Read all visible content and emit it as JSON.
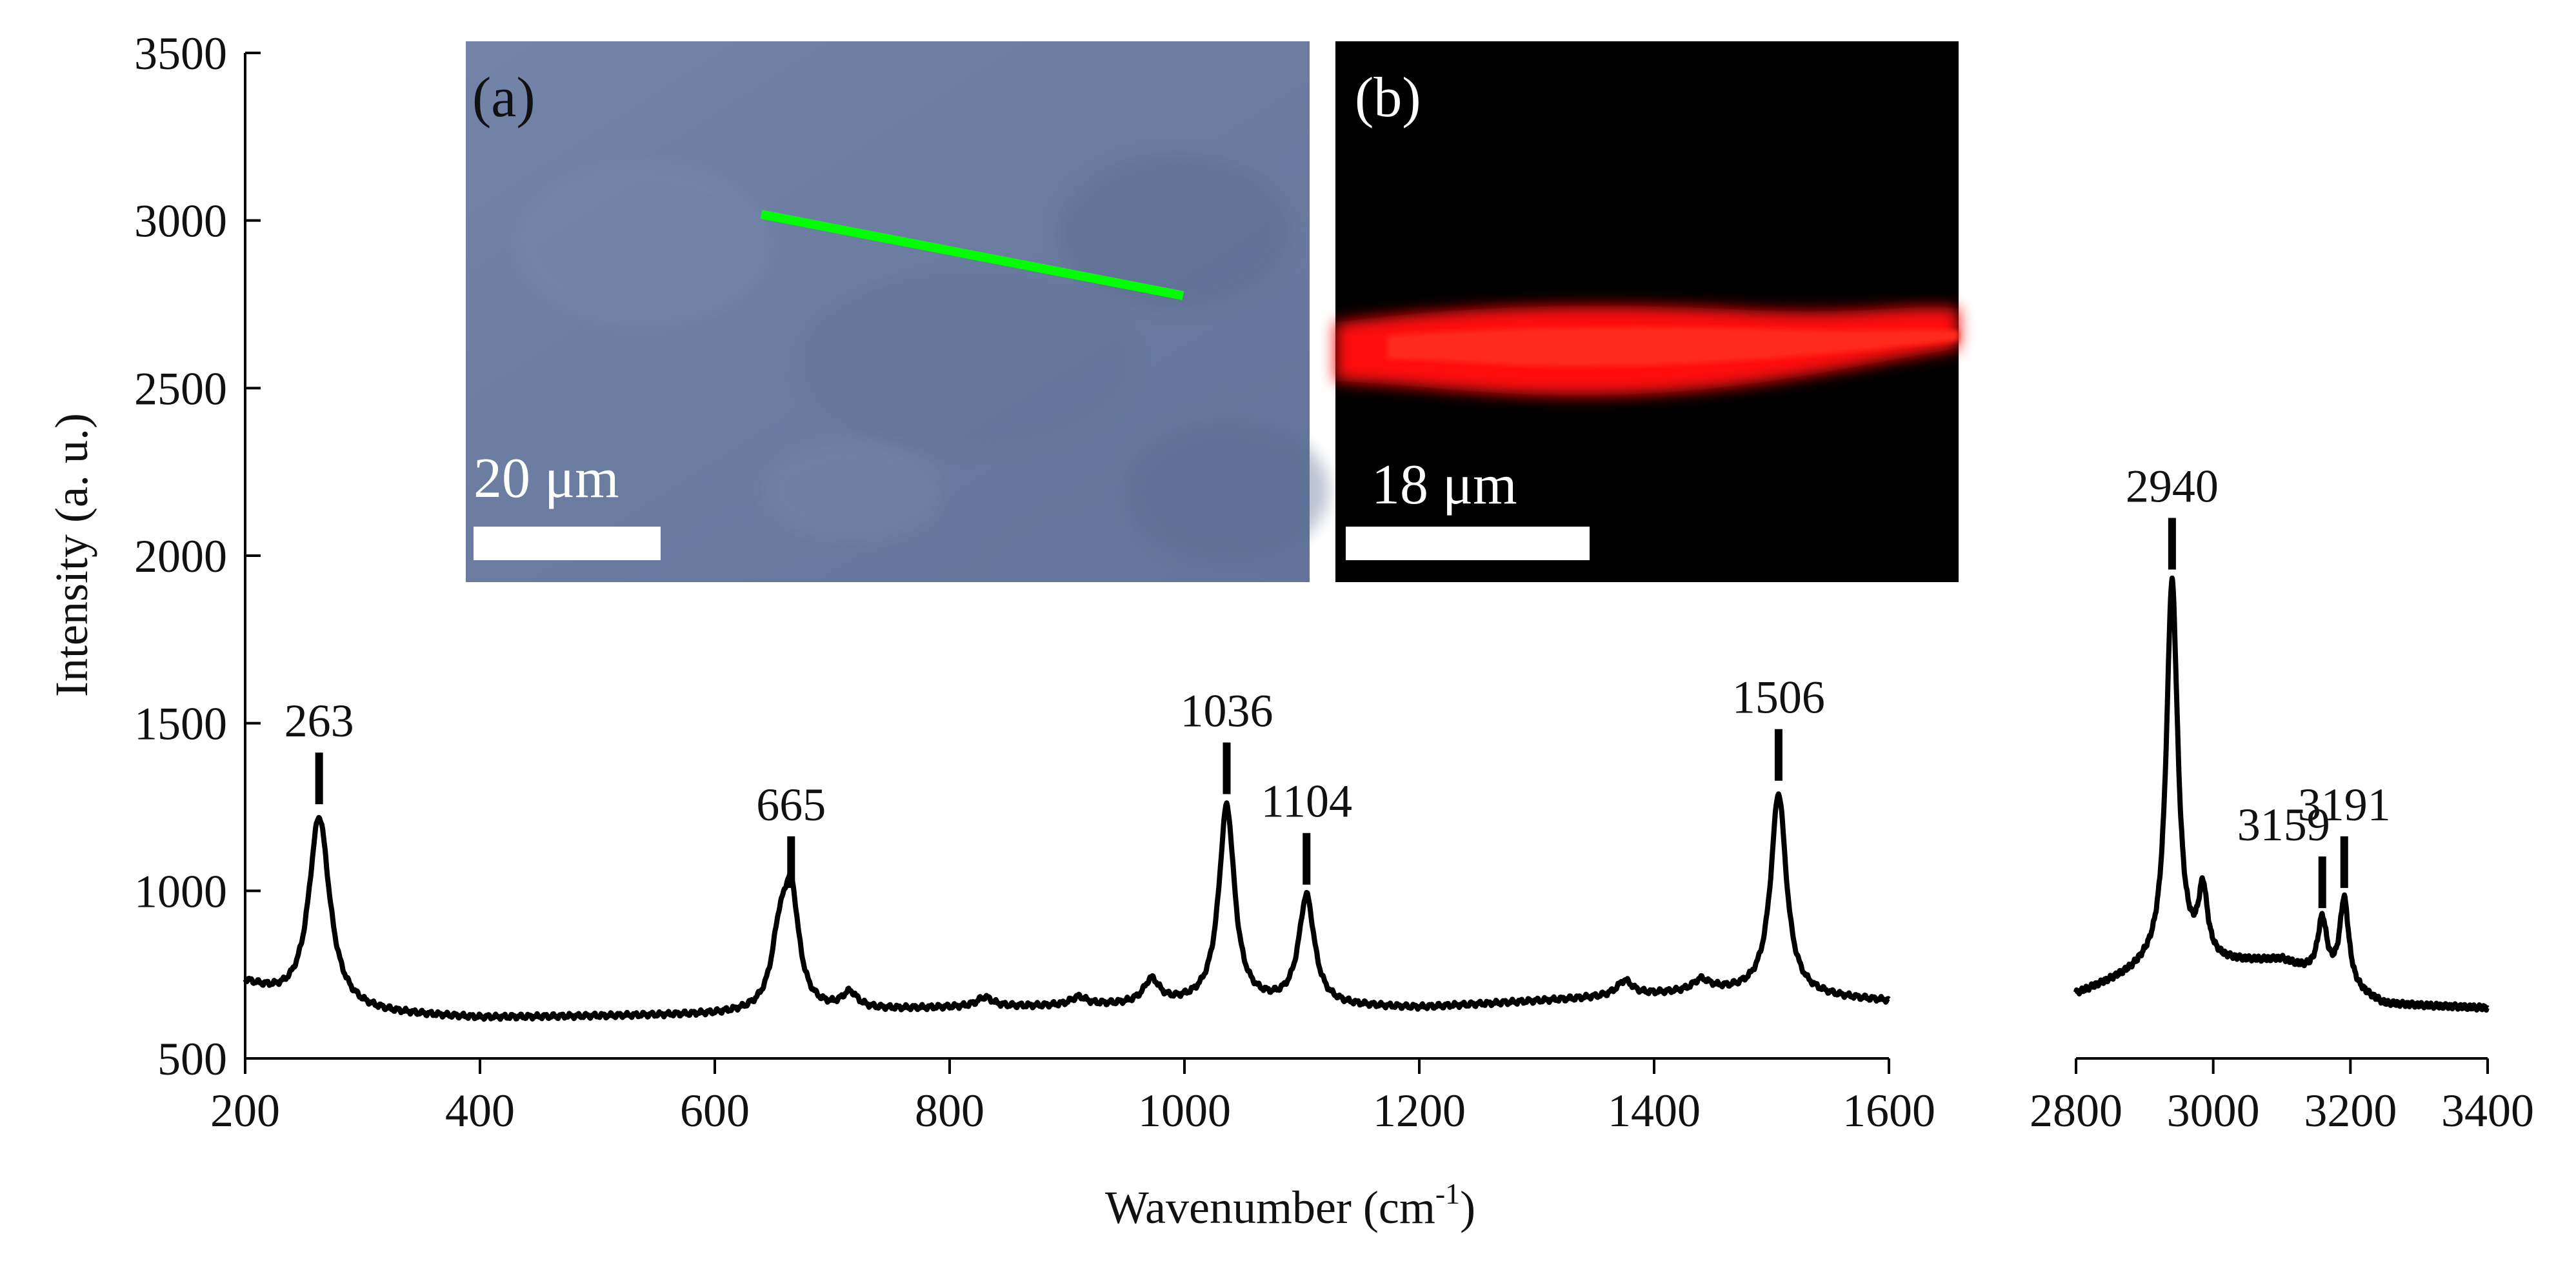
{
  "chart_data": {
    "type": "line",
    "xlabel": "Wavenumber (cm",
    "xlabel_sup": "-1",
    "xlabel_end": ")",
    "ylabel": "Intensity (a. u.)",
    "ylim": [
      500,
      3500
    ],
    "yticks": [
      500,
      1000,
      1500,
      2000,
      2500,
      3000,
      3500
    ],
    "panels": [
      {
        "xlim": [
          200,
          1600
        ],
        "xticks": [
          200,
          400,
          600,
          800,
          1000,
          1200,
          1400,
          1600
        ]
      },
      {
        "xlim": [
          2800,
          3400
        ],
        "xticks": [
          2800,
          3000,
          3200,
          3400
        ]
      }
    ],
    "baseline_low": [
      [
        200,
        720
      ],
      [
        250,
        640
      ],
      [
        400,
        620
      ],
      [
        600,
        630
      ],
      [
        800,
        650
      ],
      [
        1000,
        660
      ],
      [
        1200,
        650
      ],
      [
        1350,
        680
      ],
      [
        1450,
        700
      ],
      [
        1600,
        670
      ]
    ],
    "baseline_high": [
      [
        2800,
        690
      ],
      [
        2900,
        760
      ],
      [
        3000,
        780
      ],
      [
        3100,
        790
      ],
      [
        3250,
        660
      ],
      [
        3400,
        650
      ]
    ],
    "peaks": [
      {
        "x": 263,
        "y": 1220,
        "label": "263"
      },
      {
        "x": 665,
        "y": 970,
        "label": "665"
      },
      {
        "x": 1036,
        "y": 1250,
        "label": "1036"
      },
      {
        "x": 1104,
        "y": 980,
        "label": "1104"
      },
      {
        "x": 1506,
        "y": 1290,
        "label": "1506"
      },
      {
        "x": 2940,
        "y": 1920,
        "label": "2940"
      },
      {
        "x": 3159,
        "y": 910,
        "label": "3159"
      },
      {
        "x": 3191,
        "y": 970,
        "label": "3191"
      }
    ],
    "minor_peaks": [
      {
        "x": 655,
        "y": 820
      },
      {
        "x": 715,
        "y": 690
      },
      {
        "x": 830,
        "y": 680
      },
      {
        "x": 910,
        "y": 680
      },
      {
        "x": 972,
        "y": 730
      },
      {
        "x": 1375,
        "y": 730
      },
      {
        "x": 1440,
        "y": 730
      },
      {
        "x": 2985,
        "y": 980
      }
    ]
  },
  "insets": {
    "a": {
      "label": "(a)",
      "scale_bar": "20 μm"
    },
    "b": {
      "label": "(b)",
      "scale_bar": "18 μm"
    }
  },
  "colors": {
    "line": "#000000",
    "laser_line": "#00ff00",
    "fluorescence": "#ff0000",
    "micro_bg": "#6c7fa3"
  }
}
